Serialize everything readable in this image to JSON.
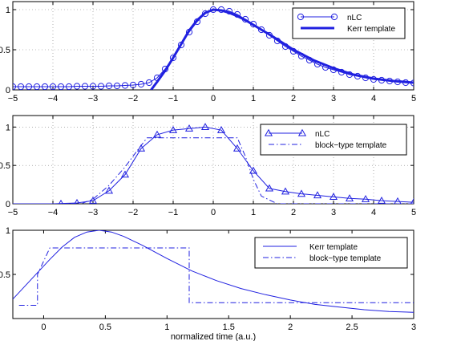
{
  "colors": {
    "series": "#2020e0",
    "axis": "#000000",
    "grid": "#7f7f7f"
  },
  "chart_data": [
    {
      "type": "line",
      "xlim": [
        -5,
        5
      ],
      "ylim": [
        0,
        1.1
      ],
      "xticks": [
        -5,
        -4,
        -3,
        -2,
        -1,
        0,
        1,
        2,
        3,
        4,
        5
      ],
      "xticklabels": [
        "−5",
        "−4",
        "−3",
        "−2",
        "−1",
        "0",
        "1",
        "2",
        "3",
        "4",
        "5"
      ],
      "yticks": [
        0,
        0.5,
        1
      ],
      "yticklabels": [
        "0",
        "0.5",
        "1"
      ],
      "grid": true,
      "legend_position": "top-right",
      "xlabel": "",
      "ylabel": "",
      "series": [
        {
          "name": "nLC",
          "style": "line-circle",
          "x": [
            -5.0,
            -4.8,
            -4.6,
            -4.4,
            -4.2,
            -4.0,
            -3.8,
            -3.6,
            -3.4,
            -3.2,
            -3.0,
            -2.8,
            -2.6,
            -2.4,
            -2.2,
            -2.0,
            -1.8,
            -1.6,
            -1.4,
            -1.2,
            -1.0,
            -0.8,
            -0.6,
            -0.4,
            -0.2,
            0.0,
            0.2,
            0.4,
            0.6,
            0.8,
            1.0,
            1.2,
            1.4,
            1.6,
            1.8,
            2.0,
            2.2,
            2.4,
            2.6,
            2.8,
            3.0,
            3.2,
            3.4,
            3.6,
            3.8,
            4.0,
            4.2,
            4.4,
            4.6,
            4.8,
            5.0
          ],
          "y": [
            0.04,
            0.04,
            0.04,
            0.04,
            0.04,
            0.04,
            0.04,
            0.04,
            0.045,
            0.045,
            0.045,
            0.045,
            0.05,
            0.05,
            0.055,
            0.06,
            0.07,
            0.09,
            0.15,
            0.26,
            0.4,
            0.56,
            0.72,
            0.85,
            0.95,
            1.0,
            1.0,
            0.98,
            0.94,
            0.88,
            0.82,
            0.75,
            0.68,
            0.61,
            0.54,
            0.48,
            0.42,
            0.37,
            0.32,
            0.28,
            0.25,
            0.22,
            0.19,
            0.17,
            0.15,
            0.13,
            0.12,
            0.11,
            0.1,
            0.09,
            0.085
          ]
        },
        {
          "name": "Kerr template",
          "style": "thick-line",
          "x": [
            -1.55,
            -1.4,
            -1.2,
            -1.0,
            -0.8,
            -0.6,
            -0.4,
            -0.2,
            0.0,
            0.2,
            0.4,
            0.6,
            0.8,
            1.0,
            1.2,
            1.5,
            2.0,
            2.5,
            3.0,
            3.5,
            4.0,
            4.5,
            5.0
          ],
          "y": [
            0.0,
            0.1,
            0.24,
            0.4,
            0.57,
            0.74,
            0.87,
            0.96,
            1.0,
            0.99,
            0.96,
            0.92,
            0.87,
            0.81,
            0.75,
            0.66,
            0.5,
            0.37,
            0.27,
            0.19,
            0.14,
            0.11,
            0.09
          ]
        }
      ]
    },
    {
      "type": "line",
      "xlim": [
        -5,
        5
      ],
      "ylim": [
        0,
        1.15
      ],
      "xticks": [
        -5,
        -4,
        -3,
        -2,
        -1,
        0,
        1,
        2,
        3,
        4,
        5
      ],
      "xticklabels": [
        "−5",
        "−4",
        "−3",
        "−2",
        "−1",
        "0",
        "1",
        "2",
        "3",
        "4",
        "5"
      ],
      "yticks": [
        0,
        0.5,
        1
      ],
      "yticklabels": [
        "0",
        "0.5",
        "1"
      ],
      "grid": true,
      "legend_position": "top-right",
      "xlabel": "",
      "ylabel": "",
      "series": [
        {
          "name": "nLC",
          "style": "line-triangle",
          "x": [
            -3.8,
            -3.4,
            -3.0,
            -2.6,
            -2.2,
            -1.8,
            -1.4,
            -1.0,
            -0.6,
            -0.2,
            0.2,
            0.6,
            1.0,
            1.4,
            1.8,
            2.2,
            2.6,
            3.0,
            3.4,
            3.8,
            4.2,
            4.6,
            5.0
          ],
          "y": [
            0.0,
            0.01,
            0.04,
            0.17,
            0.38,
            0.72,
            0.9,
            0.96,
            0.98,
            1.0,
            0.96,
            0.72,
            0.43,
            0.2,
            0.16,
            0.13,
            0.11,
            0.09,
            0.07,
            0.06,
            0.04,
            0.03,
            0.02
          ],
          "line_x": [
            -5.0,
            -4.0,
            -3.4,
            -3.0,
            -2.6,
            -2.2,
            -1.8,
            -1.4,
            -1.0,
            -0.6,
            -0.2,
            0.2,
            0.6,
            1.0,
            1.4,
            1.8,
            2.2,
            2.6,
            3.0,
            3.4,
            3.8,
            4.2,
            4.6,
            5.0
          ],
          "line_y": [
            0.0,
            0.0,
            0.01,
            0.04,
            0.17,
            0.38,
            0.72,
            0.9,
            0.96,
            0.98,
            1.0,
            0.96,
            0.72,
            0.43,
            0.2,
            0.16,
            0.13,
            0.11,
            0.09,
            0.07,
            0.06,
            0.04,
            0.03,
            0.02
          ]
        },
        {
          "name": "block−type template",
          "style": "dash-dot",
          "x": [
            -5.0,
            -3.3,
            -3.0,
            -2.6,
            -2.2,
            -1.8,
            -1.65,
            0.6,
            0.8,
            1.0,
            1.2,
            1.6,
            5.0
          ],
          "y": [
            0.0,
            0.0,
            0.06,
            0.24,
            0.48,
            0.76,
            0.86,
            0.86,
            0.62,
            0.32,
            0.1,
            0.0,
            0.0
          ]
        }
      ]
    },
    {
      "type": "line",
      "xlim": [
        -0.25,
        3
      ],
      "ylim": [
        0,
        1
      ],
      "xticks": [
        0,
        0.5,
        1,
        1.5,
        2,
        2.5,
        3
      ],
      "xticklabels": [
        "0",
        "0.5",
        "1",
        "1.5",
        "2",
        "2.5",
        "3"
      ],
      "yticks": [
        0.5,
        1
      ],
      "yticklabels": [
        "0.5",
        "1"
      ],
      "grid": false,
      "legend_position": "top-right",
      "xlabel": "normalized time (a.u.)",
      "ylabel": "",
      "series": [
        {
          "name": "Kerr template",
          "style": "line",
          "x": [
            -0.25,
            -0.15,
            -0.05,
            0.05,
            0.15,
            0.25,
            0.35,
            0.45,
            0.55,
            0.65,
            0.8,
            1.0,
            1.2,
            1.4,
            1.6,
            1.8,
            2.0,
            2.2,
            2.4,
            2.6,
            2.8,
            3.0
          ],
          "y": [
            0.22,
            0.37,
            0.52,
            0.67,
            0.81,
            0.92,
            0.98,
            1.0,
            0.98,
            0.93,
            0.83,
            0.68,
            0.54,
            0.43,
            0.34,
            0.27,
            0.21,
            0.16,
            0.13,
            0.1,
            0.08,
            0.07
          ]
        },
        {
          "name": "block−type template",
          "style": "dash-dot",
          "x": [
            -0.2,
            -0.05,
            -0.05,
            0.05,
            0.05,
            1.18,
            1.18,
            3.0
          ],
          "y": [
            0.15,
            0.15,
            0.5,
            0.8,
            0.8,
            0.8,
            0.18,
            0.18
          ]
        }
      ]
    }
  ]
}
